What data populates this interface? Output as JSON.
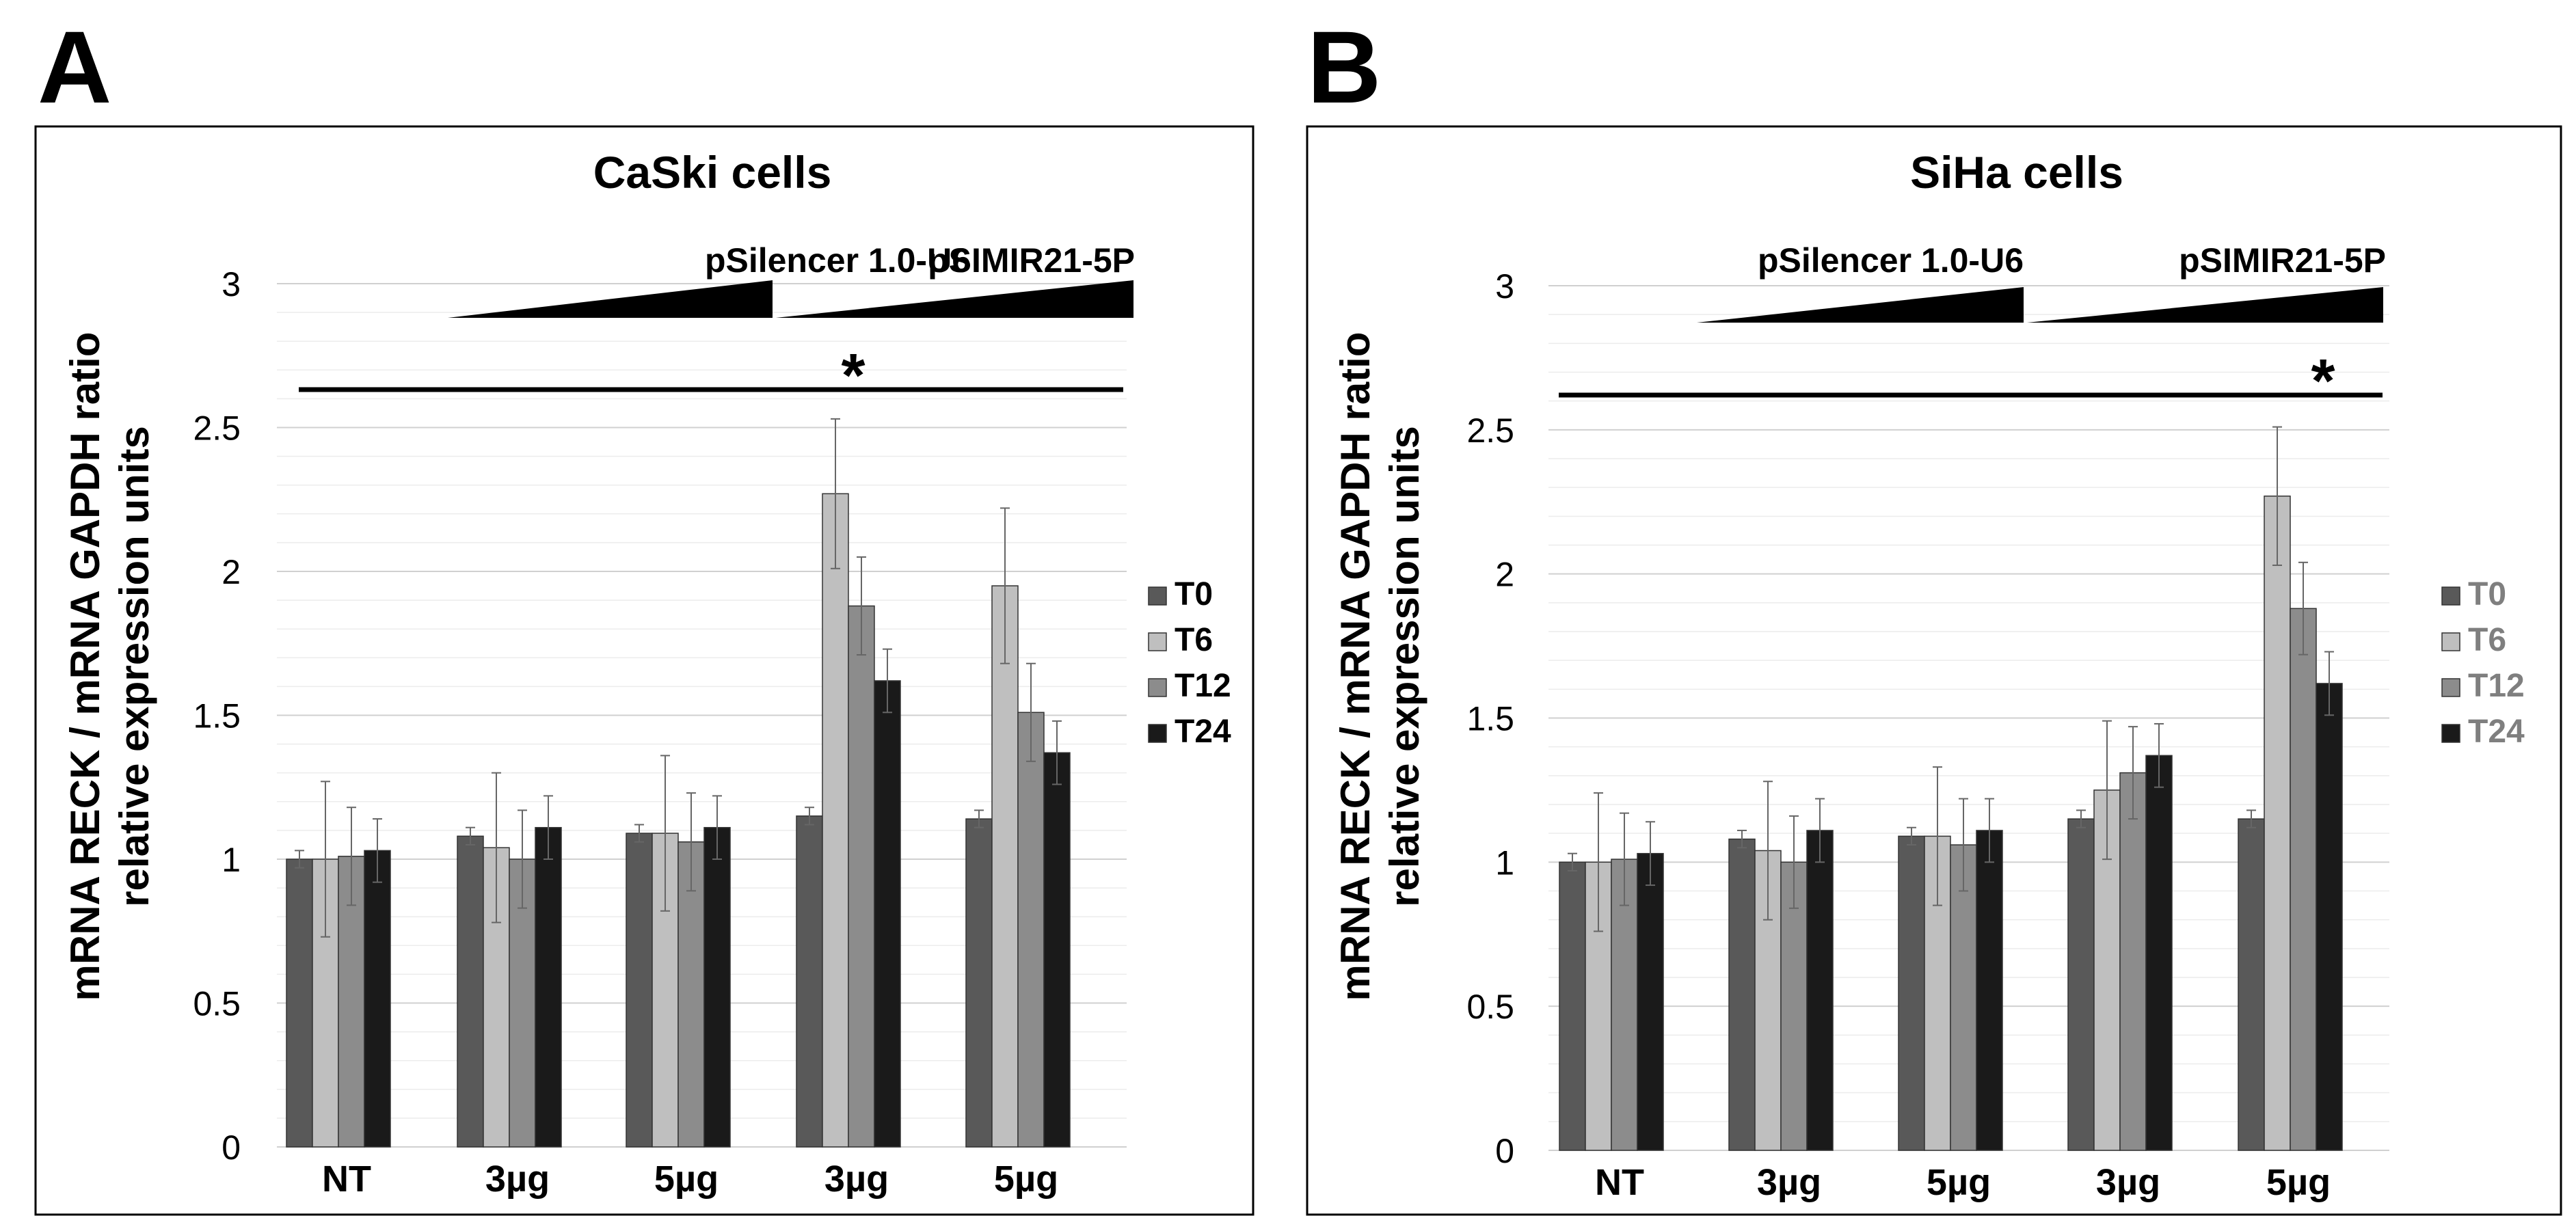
{
  "colors": {
    "T0": "#595959",
    "T6": "#bfbfbf",
    "T12": "#8c8c8c",
    "T24": "#1a1a1a",
    "legend_text_A": "#000000",
    "legend_text_B": "#7f7f7f"
  },
  "chart_data": [
    {
      "type": "bar",
      "panel_letter": "A",
      "title": "CaSki cells",
      "ylabel_line1": "mRNA RECK / mRNA GAPDH ratio",
      "ylabel_line2": "relative expression units",
      "ylim": [
        0,
        3
      ],
      "yticks": [
        "0",
        "0.5",
        "1",
        "1.5",
        "2",
        "2.5",
        "3"
      ],
      "grid": true,
      "legend_position": "right",
      "categories": [
        "NT",
        "3µg",
        "5µg",
        "3µg",
        "5µg"
      ],
      "treatments": [
        "pSilencer 1.0-U6",
        "pSIMIR21-5P"
      ],
      "significance": "*",
      "series": [
        {
          "name": "T0",
          "values": [
            1.0,
            1.08,
            1.09,
            1.15,
            1.14
          ],
          "errors": [
            0.03,
            0.03,
            0.03,
            0.03,
            0.03
          ]
        },
        {
          "name": "T6",
          "values": [
            1.0,
            1.04,
            1.09,
            2.27,
            1.95
          ],
          "errors": [
            0.27,
            0.26,
            0.27,
            0.26,
            0.27
          ]
        },
        {
          "name": "T12",
          "values": [
            1.01,
            1.0,
            1.06,
            1.88,
            1.51
          ],
          "errors": [
            0.17,
            0.17,
            0.17,
            0.17,
            0.17
          ]
        },
        {
          "name": "T24",
          "values": [
            1.03,
            1.11,
            1.11,
            1.62,
            1.37
          ],
          "errors": [
            0.11,
            0.11,
            0.11,
            0.11,
            0.11
          ]
        }
      ]
    },
    {
      "type": "bar",
      "panel_letter": "B",
      "title": "SiHa cells",
      "ylabel_line1": "mRNA RECK / mRNA GAPDH ratio",
      "ylabel_line2": "relative expression units",
      "ylim": [
        0,
        3
      ],
      "yticks": [
        "0",
        "0.5",
        "1",
        "1.5",
        "2",
        "2.5",
        "3"
      ],
      "grid": true,
      "legend_position": "right",
      "categories": [
        "NT",
        "3µg",
        "5µg",
        "3µg",
        "5µg"
      ],
      "treatments": [
        "pSilencer 1.0-U6",
        "pSIMIR21-5P"
      ],
      "significance": "*",
      "series": [
        {
          "name": "T0",
          "values": [
            1.0,
            1.08,
            1.09,
            1.15,
            1.15
          ],
          "errors": [
            0.03,
            0.03,
            0.03,
            0.03,
            0.03
          ]
        },
        {
          "name": "T6",
          "values": [
            1.0,
            1.04,
            1.09,
            1.25,
            2.27
          ],
          "errors": [
            0.24,
            0.24,
            0.24,
            0.24,
            0.24
          ]
        },
        {
          "name": "T12",
          "values": [
            1.01,
            1.0,
            1.06,
            1.31,
            1.88
          ],
          "errors": [
            0.16,
            0.16,
            0.16,
            0.16,
            0.16
          ]
        },
        {
          "name": "T24",
          "values": [
            1.03,
            1.11,
            1.11,
            1.37,
            1.62
          ],
          "errors": [
            0.11,
            0.11,
            0.11,
            0.11,
            0.11
          ]
        }
      ]
    }
  ]
}
